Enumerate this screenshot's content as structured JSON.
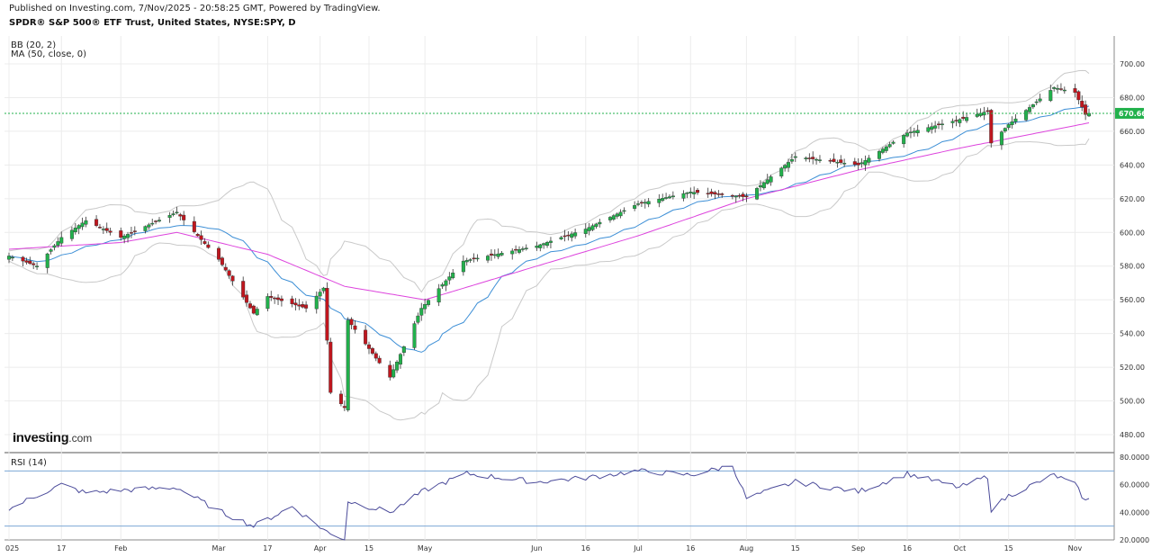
{
  "header": {
    "published": "Published on Investing.com, 7/Nov/2025 - 20:58:25 GMT, Powered by TradingView.",
    "symbol_title": "SPDR® S&P 500® ETF Trust, United States, NYSE:SPY, D"
  },
  "indicators": {
    "bb": "BB (20, 2)",
    "ma": "MA (50, close, 0)",
    "rsi": "RSI (14)"
  },
  "logo": {
    "main": "Investing",
    "suffix": ".com"
  },
  "colors": {
    "up": "#22b14c",
    "down": "#c0161e",
    "ma": "#dd44dd",
    "bb_mid": "#3d8fd6",
    "bb_band": "#c9c9c9",
    "last_price_line": "#22b14c",
    "rsi_line": "#4b4b9a",
    "rsi_levels": "#7ba7d6",
    "grid": "#ececec"
  },
  "chart_data": [
    {
      "type": "candlestick",
      "title": "SPDR® S&P 500® ETF Trust, United States, NYSE:SPY, D",
      "ylim": [
        470,
        710
      ],
      "y_ticks": [
        "700.00",
        "680.00",
        "660.00",
        "640.00",
        "620.00",
        "600.00",
        "580.00",
        "560.00",
        "540.00",
        "520.00",
        "500.00",
        "480.00"
      ],
      "y_tick_values": [
        700,
        680,
        660,
        640,
        620,
        600,
        580,
        560,
        540,
        520,
        500,
        480
      ],
      "last_price": 670.66,
      "last_price_label": "670.66",
      "x_tick_labels": [
        "025",
        "17",
        "Feb",
        "Mar",
        "17",
        "Apr",
        "15",
        "May",
        "Jun",
        "16",
        "Jul",
        "16",
        "Aug",
        "15",
        "Sep",
        "16",
        "Oct",
        "15",
        "Nov"
      ],
      "x_tick_dates": [
        "2025-01-02",
        "2025-01-17",
        "2025-02-03",
        "2025-03-03",
        "2025-03-17",
        "2025-04-01",
        "2025-04-15",
        "2025-05-01",
        "2025-06-02",
        "2025-06-16",
        "2025-07-01",
        "2025-07-16",
        "2025-08-01",
        "2025-08-15",
        "2025-09-02",
        "2025-09-16",
        "2025-10-01",
        "2025-10-15",
        "2025-11-03"
      ],
      "close_anchor_dates": [
        "2025-01-02",
        "2025-01-10",
        "2025-01-17",
        "2025-01-24",
        "2025-02-03",
        "2025-02-19",
        "2025-03-03",
        "2025-03-13",
        "2025-03-17",
        "2025-03-28",
        "2025-04-02",
        "2025-04-04",
        "2025-04-08",
        "2025-04-09",
        "2025-04-21",
        "2025-04-30",
        "2025-05-12",
        "2025-06-02",
        "2025-06-16",
        "2025-07-01",
        "2025-07-16",
        "2025-08-01",
        "2025-08-15",
        "2025-09-02",
        "2025-09-16",
        "2025-10-01",
        "2025-10-09",
        "2025-10-10",
        "2025-10-15",
        "2025-10-28",
        "2025-11-03",
        "2025-11-06",
        "2025-11-07"
      ],
      "close_anchor_values": [
        586,
        580,
        597,
        607,
        597,
        612,
        584,
        552,
        562,
        555,
        567,
        505,
        496,
        548,
        514,
        555,
        583,
        592,
        602,
        617,
        624,
        621,
        645,
        640,
        659,
        667,
        672,
        653,
        664,
        686,
        683,
        670,
        670.66
      ],
      "ma50_anchor_dates": [
        "2025-01-02",
        "2025-02-03",
        "2025-02-19",
        "2025-03-17",
        "2025-04-08",
        "2025-05-01",
        "2025-06-02",
        "2025-07-01",
        "2025-08-01",
        "2025-09-02",
        "2025-10-01",
        "2025-11-07"
      ],
      "ma50_anchor_values": [
        590,
        594,
        600,
        587,
        568,
        560,
        580,
        598,
        620,
        637,
        650,
        665
      ]
    },
    {
      "type": "line",
      "title": "RSI (14)",
      "ylim": [
        20,
        80
      ],
      "y_ticks": [
        "80.0000",
        "60.0000",
        "40.0000",
        "20.0000"
      ],
      "y_tick_values": [
        80,
        60,
        40,
        20
      ],
      "levels": [
        70,
        30
      ],
      "anchor_dates": [
        "2025-01-02",
        "2025-01-08",
        "2025-01-17",
        "2025-01-24",
        "2025-02-03",
        "2025-02-19",
        "2025-03-03",
        "2025-03-13",
        "2025-03-24",
        "2025-04-04",
        "2025-04-08",
        "2025-04-09",
        "2025-04-21",
        "2025-05-01",
        "2025-05-13",
        "2025-06-02",
        "2025-06-16",
        "2025-07-01",
        "2025-07-16",
        "2025-07-28",
        "2025-08-01",
        "2025-08-15",
        "2025-09-02",
        "2025-09-16",
        "2025-10-01",
        "2025-10-09",
        "2025-10-10",
        "2025-10-15",
        "2025-10-28",
        "2025-11-03",
        "2025-11-06",
        "2025-11-07"
      ],
      "anchor_values": [
        42,
        50,
        60,
        54,
        56,
        58,
        41,
        30,
        44,
        24,
        21,
        48,
        40,
        56,
        68,
        62,
        65,
        70,
        67,
        74,
        50,
        62,
        55,
        68,
        58,
        66,
        42,
        52,
        67,
        60,
        48,
        49
      ]
    }
  ]
}
